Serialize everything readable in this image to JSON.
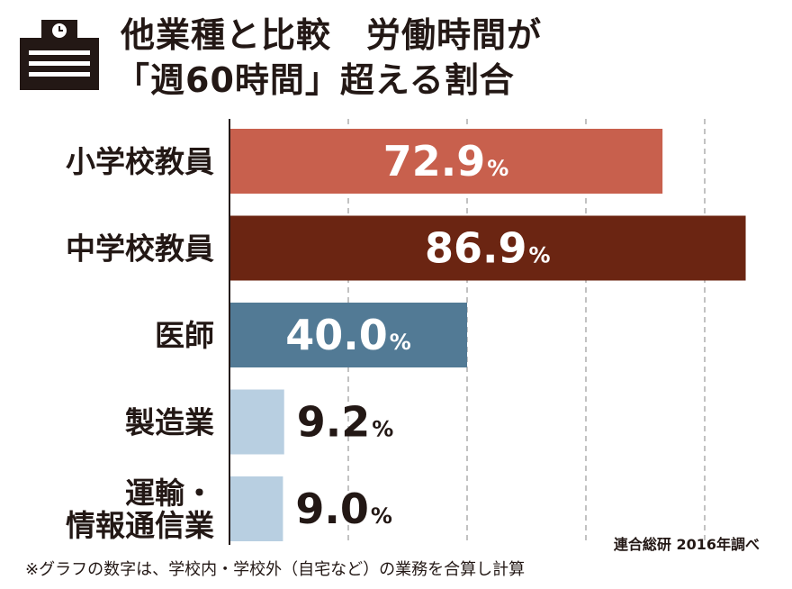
{
  "title_lines": [
    "他業種と比較　労働時間が",
    "「週60時間」超える割合"
  ],
  "chart_data": {
    "type": "bar",
    "orientation": "horizontal",
    "categories": [
      [
        "小学校教員"
      ],
      [
        "中学校教員"
      ],
      [
        "医師"
      ],
      [
        "製造業"
      ],
      [
        "運輸・",
        "情報通信業"
      ]
    ],
    "values": [
      72.9,
      86.9,
      40.0,
      9.2,
      9.0
    ],
    "value_labels": [
      "72.9",
      "86.9",
      "40.0",
      "9.2",
      "9.0"
    ],
    "unit": "%",
    "colors": [
      "#c8604d",
      "#6b2512",
      "#527a95",
      "#b8cfe1",
      "#b8cfe1"
    ],
    "xlim": [
      0,
      100
    ],
    "grid": true
  },
  "source": "連合総研 2016年調べ",
  "note": "※グラフの数字は、学校内・学校外（自宅など）の業務を合算し計算",
  "icon": "clock-document-icon"
}
